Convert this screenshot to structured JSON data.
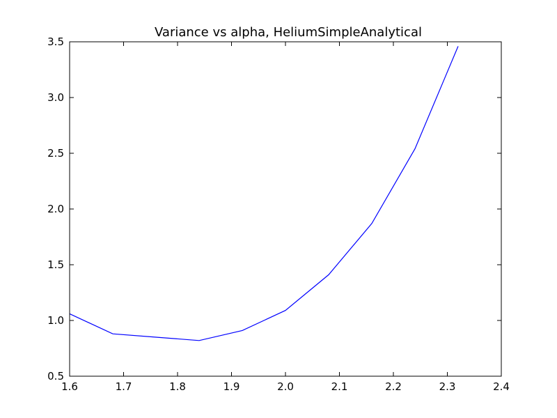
{
  "chart_data": {
    "type": "line",
    "title": "Variance vs alpha, HeliumSimpleAnalytical",
    "xlabel": "",
    "ylabel": "",
    "xlim": [
      1.6,
      2.4
    ],
    "ylim": [
      0.5,
      3.5
    ],
    "xticks": [
      "1.6",
      "1.7",
      "1.8",
      "1.9",
      "2.0",
      "2.1",
      "2.2",
      "2.3",
      "2.4"
    ],
    "yticks": [
      "0.5",
      "1.0",
      "1.5",
      "2.0",
      "2.5",
      "3.0",
      "3.5"
    ],
    "grid": false,
    "series": [
      {
        "color": "#0000ff",
        "x": [
          1.6,
          1.68,
          1.76,
          1.84,
          1.92,
          2.0,
          2.08,
          2.16,
          2.24,
          2.32
        ],
        "y": [
          1.06,
          0.88,
          0.85,
          0.82,
          0.91,
          1.09,
          1.41,
          1.87,
          2.54,
          3.46
        ]
      }
    ]
  }
}
